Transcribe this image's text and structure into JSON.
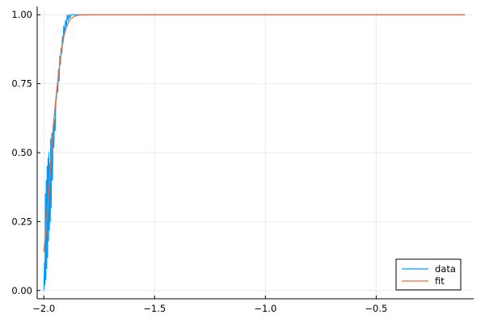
{
  "chart_data": {
    "type": "line",
    "title": "",
    "xlabel": "",
    "ylabel": "",
    "xlim": [
      -2.03,
      -0.06
    ],
    "ylim": [
      -0.03,
      1.03
    ],
    "x_ticks": [
      -2.0,
      -1.5,
      -1.0,
      -0.5
    ],
    "x_tick_labels": [
      "−2.0",
      "−1.5",
      "−1.0",
      "−0.5"
    ],
    "y_ticks": [
      0.0,
      0.25,
      0.5,
      0.75,
      1.0
    ],
    "y_tick_labels": [
      "0.00",
      "0.25",
      "0.50",
      "0.75",
      "1.00"
    ],
    "grid": true,
    "legend": {
      "position": "bottom-right",
      "entries": [
        "data",
        "fit"
      ]
    },
    "series": [
      {
        "name": "data",
        "color": "#009AF9",
        "points": [
          [
            -2.0,
            0.0
          ],
          [
            -1.997,
            0.1
          ],
          [
            -1.995,
            0.02
          ],
          [
            -1.993,
            0.35
          ],
          [
            -1.991,
            0.04
          ],
          [
            -1.989,
            0.4
          ],
          [
            -1.987,
            0.08
          ],
          [
            -1.985,
            0.45
          ],
          [
            -1.983,
            0.12
          ],
          [
            -1.981,
            0.48
          ],
          [
            -1.979,
            0.18
          ],
          [
            -1.977,
            0.5
          ],
          [
            -1.975,
            0.22
          ],
          [
            -1.973,
            0.46
          ],
          [
            -1.971,
            0.25
          ],
          [
            -1.969,
            0.55
          ],
          [
            -1.967,
            0.3
          ],
          [
            -1.964,
            0.57
          ],
          [
            -1.961,
            0.4
          ],
          [
            -1.958,
            0.6
          ],
          [
            -1.955,
            0.52
          ],
          [
            -1.952,
            0.62
          ],
          [
            -1.949,
            0.58
          ],
          [
            -1.946,
            0.68
          ],
          [
            -1.943,
            0.7
          ],
          [
            -1.94,
            0.74
          ],
          [
            -1.937,
            0.72
          ],
          [
            -1.934,
            0.8
          ],
          [
            -1.931,
            0.76
          ],
          [
            -1.928,
            0.85
          ],
          [
            -1.925,
            0.82
          ],
          [
            -1.922,
            0.88
          ],
          [
            -1.919,
            0.86
          ],
          [
            -1.916,
            0.92
          ],
          [
            -1.913,
            0.9
          ],
          [
            -1.91,
            0.96
          ],
          [
            -1.906,
            0.93
          ],
          [
            -1.902,
            0.98
          ],
          [
            -1.898,
            0.96
          ],
          [
            -1.894,
            1.0
          ],
          [
            -1.89,
            0.98
          ],
          [
            -1.886,
            1.0
          ],
          [
            -1.882,
            0.99
          ],
          [
            -1.878,
            1.0
          ],
          [
            -1.87,
            1.0
          ],
          [
            -1.86,
            1.0
          ],
          [
            -1.85,
            1.0
          ],
          [
            -1.8,
            1.0
          ],
          [
            -1.7,
            1.0
          ],
          [
            -1.5,
            1.0
          ],
          [
            -1.0,
            1.0
          ],
          [
            -0.5,
            1.0
          ],
          [
            -0.1,
            1.0
          ]
        ]
      },
      {
        "name": "fit",
        "color": "#E26F46",
        "points": [
          [
            -2.0,
            0.14
          ],
          [
            -1.99,
            0.22
          ],
          [
            -1.98,
            0.32
          ],
          [
            -1.97,
            0.45
          ],
          [
            -1.96,
            0.57
          ],
          [
            -1.95,
            0.66
          ],
          [
            -1.94,
            0.74
          ],
          [
            -1.93,
            0.81
          ],
          [
            -1.92,
            0.87
          ],
          [
            -1.91,
            0.92
          ],
          [
            -1.9,
            0.95
          ],
          [
            -1.89,
            0.97
          ],
          [
            -1.88,
            0.985
          ],
          [
            -1.86,
            0.995
          ],
          [
            -1.84,
            0.999
          ],
          [
            -1.8,
            1.0
          ],
          [
            -1.5,
            1.0
          ],
          [
            -1.0,
            1.0
          ],
          [
            -0.5,
            1.0
          ],
          [
            -0.1,
            1.0
          ]
        ]
      }
    ]
  }
}
